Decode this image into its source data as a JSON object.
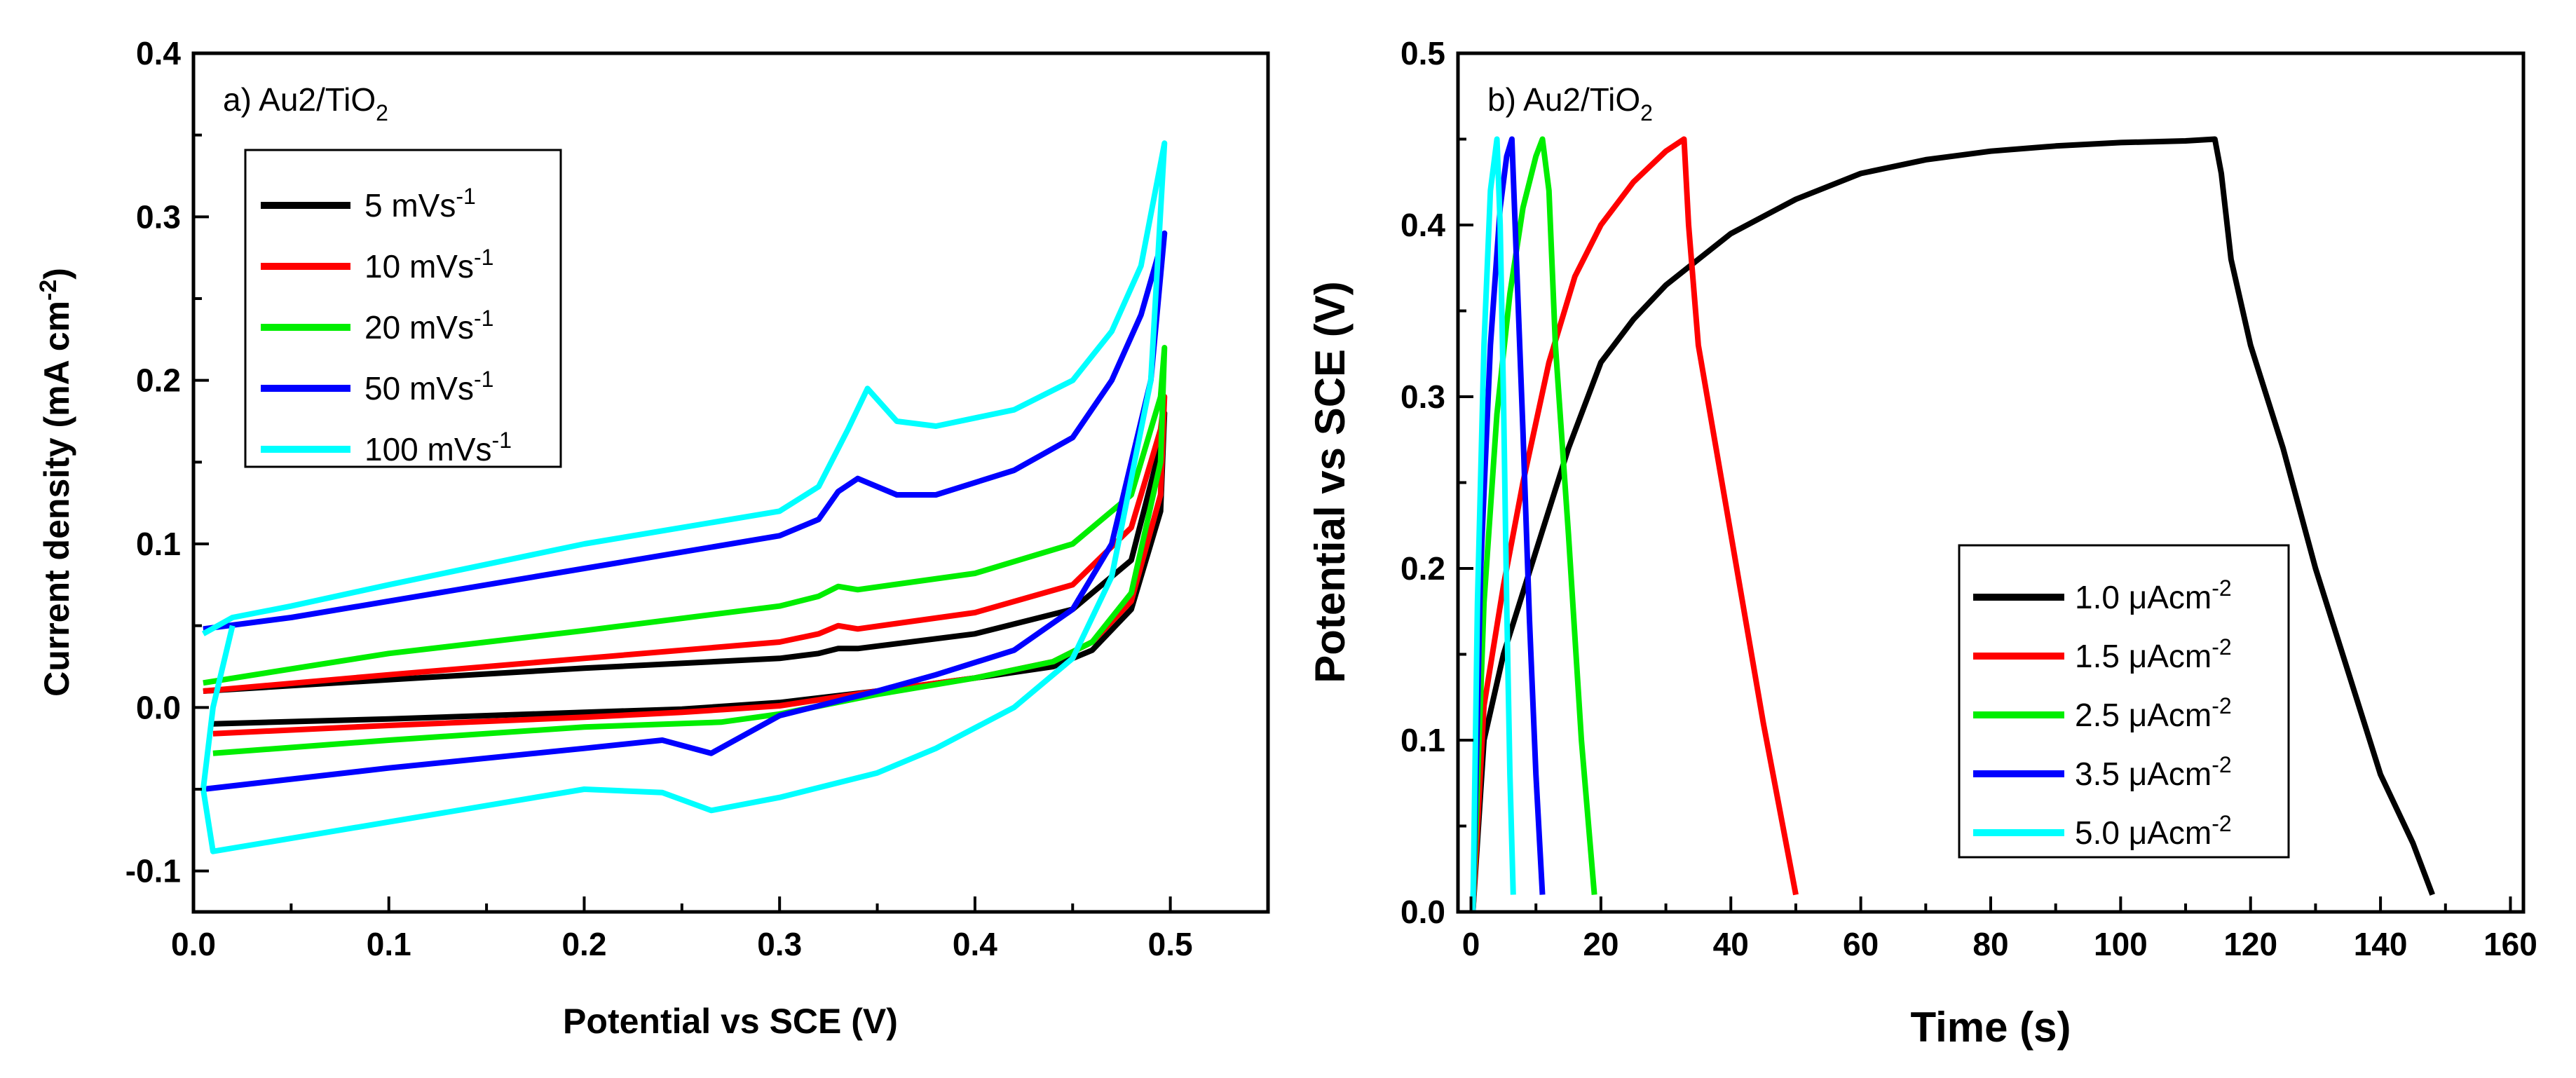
{
  "chart_data": [
    {
      "type": "line",
      "panel_label": "a) Au2/TiO",
      "panel_label_sub": "2",
      "xlabel": "Potential vs SCE (V)",
      "ylabel": "Current density (mA cm",
      "ylabel_sup": "-2",
      "ylabel_end": ")",
      "xlim": [
        0.0,
        0.55
      ],
      "ylim": [
        -0.125,
        0.4
      ],
      "xticks": [
        0.0,
        0.1,
        0.2,
        0.3,
        0.4,
        0.5
      ],
      "xtick_labels": [
        "0.0",
        "0.1",
        "0.2",
        "0.3",
        "0.4",
        "0.5"
      ],
      "yticks": [
        -0.1,
        0.0,
        0.1,
        0.2,
        0.3,
        0.4
      ],
      "ytick_labels": [
        "-0.1",
        "0.0",
        "0.1",
        "0.2",
        "0.3",
        "0.4"
      ],
      "legend_position": "upper-left",
      "series": [
        {
          "name": "5 mVs",
          "name_sup": "-1",
          "color": "#000000",
          "x": [
            0.005,
            0.1,
            0.2,
            0.3,
            0.32,
            0.33,
            0.34,
            0.4,
            0.45,
            0.48,
            0.495,
            0.497,
            0.495,
            0.48,
            0.46,
            0.44,
            0.4,
            0.35,
            0.3,
            0.25,
            0.2,
            0.1,
            0.01
          ],
          "y": [
            0.01,
            0.017,
            0.024,
            0.03,
            0.033,
            0.036,
            0.036,
            0.045,
            0.06,
            0.09,
            0.16,
            0.18,
            0.12,
            0.06,
            0.035,
            0.025,
            0.018,
            0.01,
            0.003,
            -0.001,
            -0.003,
            -0.007,
            -0.01
          ]
        },
        {
          "name": "10 mVs",
          "name_sup": "-1",
          "color": "#ff0000",
          "x": [
            0.005,
            0.1,
            0.2,
            0.3,
            0.32,
            0.33,
            0.34,
            0.4,
            0.45,
            0.48,
            0.495,
            0.497,
            0.495,
            0.48,
            0.46,
            0.44,
            0.4,
            0.35,
            0.3,
            0.25,
            0.2,
            0.1,
            0.01
          ],
          "y": [
            0.01,
            0.02,
            0.03,
            0.04,
            0.045,
            0.05,
            0.048,
            0.058,
            0.075,
            0.11,
            0.17,
            0.19,
            0.13,
            0.065,
            0.04,
            0.028,
            0.018,
            0.01,
            0.001,
            -0.003,
            -0.006,
            -0.011,
            -0.016
          ]
        },
        {
          "name": "20 mVs",
          "name_sup": "-1",
          "color": "#00ee00",
          "x": [
            0.005,
            0.1,
            0.2,
            0.3,
            0.32,
            0.33,
            0.34,
            0.4,
            0.45,
            0.48,
            0.495,
            0.497,
            0.495,
            0.48,
            0.46,
            0.44,
            0.4,
            0.35,
            0.3,
            0.27,
            0.2,
            0.1,
            0.01
          ],
          "y": [
            0.015,
            0.033,
            0.047,
            0.062,
            0.068,
            0.074,
            0.072,
            0.082,
            0.1,
            0.13,
            0.19,
            0.22,
            0.15,
            0.07,
            0.04,
            0.028,
            0.018,
            0.008,
            -0.004,
            -0.009,
            -0.012,
            -0.02,
            -0.028
          ]
        },
        {
          "name": "50 mVs",
          "name_sup": "-1",
          "color": "#0000ff",
          "x": [
            0.005,
            0.05,
            0.1,
            0.2,
            0.3,
            0.32,
            0.33,
            0.34,
            0.36,
            0.38,
            0.42,
            0.45,
            0.47,
            0.485,
            0.497,
            0.49,
            0.47,
            0.45,
            0.42,
            0.38,
            0.35,
            0.3,
            0.265,
            0.24,
            0.2,
            0.1,
            0.005
          ],
          "y": [
            0.048,
            0.055,
            0.065,
            0.085,
            0.105,
            0.115,
            0.132,
            0.14,
            0.13,
            0.13,
            0.145,
            0.165,
            0.2,
            0.24,
            0.29,
            0.2,
            0.1,
            0.06,
            0.035,
            0.02,
            0.01,
            -0.005,
            -0.028,
            -0.02,
            -0.025,
            -0.037,
            -0.05
          ]
        },
        {
          "name": "100 mVs",
          "name_sup": "-1",
          "color": "#00ffff",
          "x": [
            0.005,
            0.02,
            0.05,
            0.1,
            0.2,
            0.3,
            0.32,
            0.335,
            0.345,
            0.36,
            0.38,
            0.42,
            0.45,
            0.47,
            0.485,
            0.497,
            0.49,
            0.47,
            0.45,
            0.42,
            0.38,
            0.35,
            0.3,
            0.265,
            0.24,
            0.2,
            0.1,
            0.01,
            0.005,
            0.01,
            0.02
          ],
          "y": [
            0.045,
            0.055,
            0.062,
            0.075,
            0.1,
            0.12,
            0.135,
            0.17,
            0.195,
            0.175,
            0.172,
            0.182,
            0.2,
            0.23,
            0.27,
            0.345,
            0.2,
            0.08,
            0.03,
            0.0,
            -0.025,
            -0.04,
            -0.055,
            -0.063,
            -0.052,
            -0.05,
            -0.07,
            -0.088,
            -0.05,
            0.0,
            0.05
          ]
        }
      ]
    },
    {
      "type": "line",
      "panel_label": "b) Au2/TiO",
      "panel_label_sub": "2",
      "xlabel": "Time (s)",
      "ylabel": "Potential vs SCE (V)",
      "xlim": [
        -2,
        162
      ],
      "ylim": [
        0.0,
        0.5
      ],
      "xticks": [
        0,
        20,
        40,
        60,
        80,
        100,
        120,
        140,
        160
      ],
      "xtick_labels": [
        "0",
        "20",
        "40",
        "60",
        "80",
        "100",
        "120",
        "140",
        "160"
      ],
      "yticks": [
        0.0,
        0.1,
        0.2,
        0.3,
        0.4,
        0.5
      ],
      "ytick_labels": [
        "0.0",
        "0.1",
        "0.2",
        "0.3",
        "0.4",
        "0.5"
      ],
      "legend_position": "lower-right",
      "series": [
        {
          "name": "1.0 μAcm",
          "name_sup": "-2",
          "color": "#000000",
          "x": [
            0.3,
            2,
            5,
            10,
            15,
            20,
            25,
            30,
            35,
            40,
            50,
            60,
            70,
            80,
            90,
            100,
            110,
            114.5,
            115.5,
            117,
            120,
            125,
            130,
            135,
            140,
            145,
            148
          ],
          "y": [
            0.0,
            0.1,
            0.15,
            0.21,
            0.27,
            0.32,
            0.345,
            0.365,
            0.38,
            0.395,
            0.415,
            0.43,
            0.438,
            0.443,
            0.446,
            0.448,
            0.449,
            0.45,
            0.43,
            0.38,
            0.33,
            0.27,
            0.2,
            0.14,
            0.08,
            0.04,
            0.01
          ]
        },
        {
          "name": "1.5 μAcm",
          "name_sup": "-2",
          "color": "#ff0000",
          "x": [
            0.3,
            2,
            5,
            8,
            12,
            16,
            20,
            25,
            30,
            32.8,
            33.5,
            35,
            40,
            45,
            50
          ],
          "y": [
            0.0,
            0.12,
            0.19,
            0.25,
            0.32,
            0.37,
            0.4,
            0.425,
            0.443,
            0.45,
            0.4,
            0.33,
            0.22,
            0.11,
            0.01
          ]
        },
        {
          "name": "2.5 μAcm",
          "name_sup": "-2",
          "color": "#00ee00",
          "x": [
            0.3,
            2,
            4,
            6,
            8,
            10,
            11,
            12,
            13,
            15,
            17,
            19
          ],
          "y": [
            0.0,
            0.18,
            0.29,
            0.36,
            0.41,
            0.44,
            0.45,
            0.42,
            0.33,
            0.22,
            0.1,
            0.01
          ]
        },
        {
          "name": "3.5 μAcm",
          "name_sup": "-2",
          "color": "#0000ff",
          "x": [
            0.3,
            1.5,
            3,
            4.5,
            5.5,
            6.3,
            7,
            8,
            9,
            10,
            11
          ],
          "y": [
            0.0,
            0.2,
            0.33,
            0.41,
            0.44,
            0.45,
            0.38,
            0.28,
            0.17,
            0.08,
            0.01
          ]
        },
        {
          "name": "5.0 μAcm",
          "name_sup": "-2",
          "color": "#00ffff",
          "x": [
            0.3,
            1,
            2,
            3,
            4,
            4.5,
            5,
            5.5,
            6,
            6.5
          ],
          "y": [
            0.0,
            0.18,
            0.33,
            0.42,
            0.45,
            0.4,
            0.3,
            0.18,
            0.08,
            0.01
          ]
        }
      ]
    }
  ]
}
